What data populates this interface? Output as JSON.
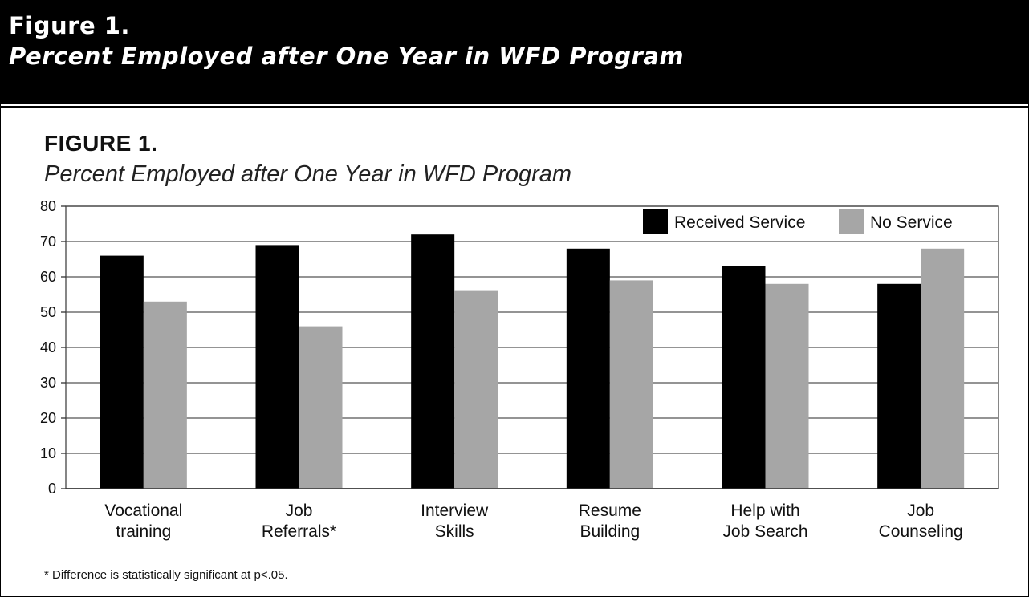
{
  "header": {
    "line1": "Figure 1.",
    "line2": "Percent Employed after One Year in WFD Program"
  },
  "figure": {
    "title": "FIGURE 1.",
    "subtitle": "Percent Employed after One Year in WFD Program",
    "footnote": "* Difference is statistically significant at p<.05."
  },
  "chart_data": {
    "type": "bar",
    "categories": [
      [
        "Vocational",
        "training"
      ],
      [
        "Job",
        "Referrals*"
      ],
      [
        "Interview",
        "Skills"
      ],
      [
        "Resume",
        "Building"
      ],
      [
        "Help with",
        "Job Search"
      ],
      [
        "Job",
        "Counseling"
      ]
    ],
    "series": [
      {
        "name": "Received Service",
        "color": "#000000",
        "values": [
          66,
          69,
          72,
          68,
          63,
          58
        ]
      },
      {
        "name": "No Service",
        "color": "#a6a6a6",
        "values": [
          53,
          46,
          56,
          59,
          58,
          68
        ]
      }
    ],
    "ylim": [
      0,
      80
    ],
    "yticks": [
      0,
      10,
      20,
      30,
      40,
      50,
      60,
      70,
      80
    ],
    "grid": true,
    "legend_position": "top-right"
  }
}
